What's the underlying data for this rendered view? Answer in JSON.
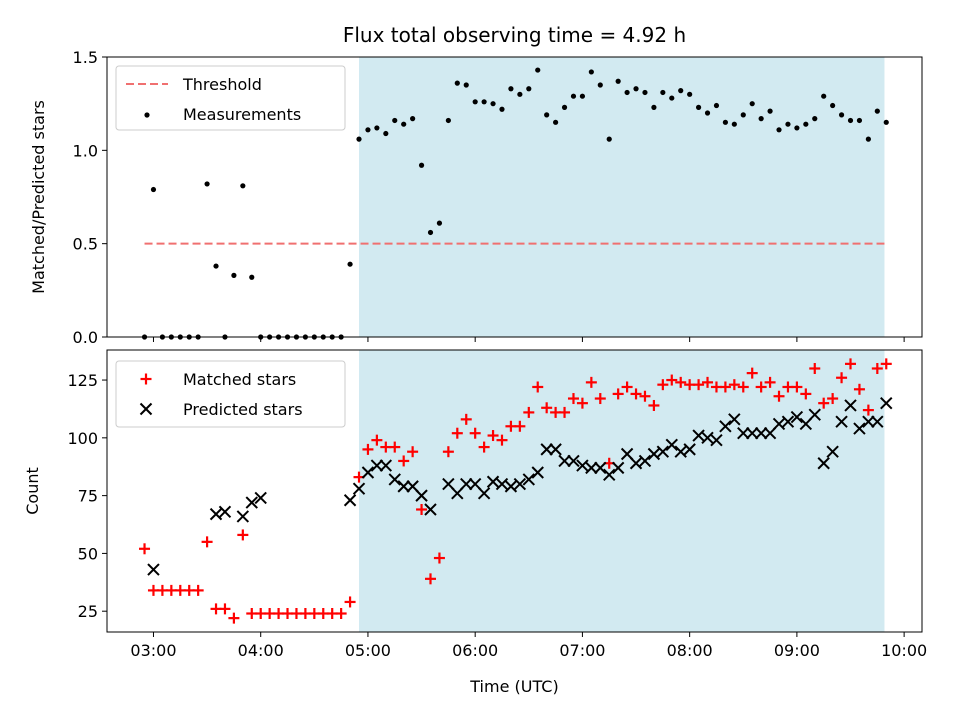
{
  "chart_data": [
    {
      "type": "scatter",
      "title": "Flux total observing time = 4.92 h",
      "xlabel": "",
      "ylabel": "Matched/Predicted stars",
      "xlim": [
        "02:34",
        "10:10"
      ],
      "ylim": [
        0,
        1.5
      ],
      "y_ticks": [
        "0.0",
        "0.5",
        "1.0",
        "1.5"
      ],
      "grid": false,
      "legend": "upper-left",
      "highlight_span": {
        "start": "04:55",
        "end": "09:49",
        "color": "#add8e6"
      },
      "threshold": {
        "name": "Threshold",
        "value": 0.5,
        "x_start": "02:55",
        "x_end": "09:49",
        "color": "#f07070"
      },
      "series": [
        {
          "name": "Measurements",
          "color": "#000000",
          "marker": "dot",
          "x": [
            "02:55",
            "03:00",
            "03:05",
            "03:10",
            "03:15",
            "03:20",
            "03:25",
            "03:30",
            "03:35",
            "03:40",
            "03:45",
            "03:50",
            "03:55",
            "04:00",
            "04:05",
            "04:10",
            "04:15",
            "04:20",
            "04:25",
            "04:30",
            "04:35",
            "04:40",
            "04:45",
            "04:50",
            "04:55",
            "05:00",
            "05:05",
            "05:10",
            "05:15",
            "05:20",
            "05:25",
            "05:30",
            "05:35",
            "05:40",
            "05:45",
            "05:50",
            "05:55",
            "06:00",
            "06:05",
            "06:10",
            "06:15",
            "06:20",
            "06:25",
            "06:30",
            "06:35",
            "06:40",
            "06:45",
            "06:50",
            "06:55",
            "07:00",
            "07:05",
            "07:10",
            "07:15",
            "07:20",
            "07:25",
            "07:30",
            "07:35",
            "07:40",
            "07:45",
            "07:50",
            "07:55",
            "08:00",
            "08:05",
            "08:10",
            "08:15",
            "08:20",
            "08:25",
            "08:30",
            "08:35",
            "08:40",
            "08:45",
            "08:50",
            "08:55",
            "09:00",
            "09:05",
            "09:10",
            "09:15",
            "09:20",
            "09:25",
            "09:30",
            "09:35",
            "09:40",
            "09:45",
            "09:50"
          ],
          "y": [
            0.0,
            0.79,
            0.0,
            0.0,
            0.0,
            0.0,
            0.0,
            0.82,
            0.38,
            0.0,
            0.33,
            0.81,
            0.32,
            0.0,
            0.0,
            0.0,
            0.0,
            0.0,
            0.0,
            0.0,
            0.0,
            0.0,
            0.0,
            0.39,
            1.06,
            1.11,
            1.12,
            1.09,
            1.16,
            1.14,
            1.17,
            0.92,
            0.56,
            0.61,
            1.16,
            1.36,
            1.35,
            1.26,
            1.26,
            1.25,
            1.22,
            1.33,
            1.3,
            1.33,
            1.43,
            1.19,
            1.15,
            1.23,
            1.29,
            1.29,
            1.42,
            1.35,
            1.06,
            1.37,
            1.31,
            1.33,
            1.31,
            1.23,
            1.31,
            1.28,
            1.32,
            1.3,
            1.23,
            1.2,
            1.24,
            1.15,
            1.14,
            1.19,
            1.25,
            1.17,
            1.21,
            1.11,
            1.14,
            1.12,
            1.14,
            1.17,
            1.29,
            1.24,
            1.19,
            1.16,
            1.16,
            1.06,
            1.21,
            1.15
          ]
        }
      ]
    },
    {
      "type": "scatter",
      "title": "",
      "xlabel": "Time (UTC)",
      "ylabel": "Count",
      "xlim": [
        "02:34",
        "10:10"
      ],
      "ylim": [
        16,
        138
      ],
      "x_ticks": [
        "03:00",
        "04:00",
        "05:00",
        "06:00",
        "07:00",
        "08:00",
        "09:00",
        "10:00"
      ],
      "y_ticks": [
        "25",
        "50",
        "75",
        "100",
        "125"
      ],
      "grid": false,
      "legend": "upper-left",
      "highlight_span": {
        "start": "04:55",
        "end": "09:49",
        "color": "#add8e6"
      },
      "series": [
        {
          "name": "Matched stars",
          "color": "#ff0000",
          "marker": "plus",
          "x": [
            "02:55",
            "03:00",
            "03:05",
            "03:10",
            "03:15",
            "03:20",
            "03:25",
            "03:30",
            "03:35",
            "03:40",
            "03:45",
            "03:50",
            "03:55",
            "04:00",
            "04:05",
            "04:10",
            "04:15",
            "04:20",
            "04:25",
            "04:30",
            "04:35",
            "04:40",
            "04:45",
            "04:50",
            "04:55",
            "05:00",
            "05:05",
            "05:10",
            "05:15",
            "05:20",
            "05:25",
            "05:30",
            "05:35",
            "05:40",
            "05:45",
            "05:50",
            "05:55",
            "06:00",
            "06:05",
            "06:10",
            "06:15",
            "06:20",
            "06:25",
            "06:30",
            "06:35",
            "06:40",
            "06:45",
            "06:50",
            "06:55",
            "07:00",
            "07:05",
            "07:10",
            "07:15",
            "07:20",
            "07:25",
            "07:30",
            "07:35",
            "07:40",
            "07:45",
            "07:50",
            "07:55",
            "08:00",
            "08:05",
            "08:10",
            "08:15",
            "08:20",
            "08:25",
            "08:30",
            "08:35",
            "08:40",
            "08:45",
            "08:50",
            "08:55",
            "09:00",
            "09:05",
            "09:10",
            "09:15",
            "09:20",
            "09:25",
            "09:30",
            "09:35",
            "09:40",
            "09:45",
            "09:50"
          ],
          "y": [
            52,
            34,
            34,
            34,
            34,
            34,
            34,
            55,
            26,
            26,
            22,
            58,
            24,
            24,
            24,
            24,
            24,
            24,
            24,
            24,
            24,
            24,
            24,
            29,
            83,
            95,
            99,
            96,
            96,
            90,
            94,
            69,
            39,
            48,
            94,
            102,
            108,
            102,
            96,
            101,
            99,
            105,
            105,
            111,
            122,
            113,
            111,
            111,
            117,
            115,
            124,
            117,
            89,
            119,
            122,
            119,
            118,
            114,
            123,
            125,
            124,
            123,
            123,
            124,
            122,
            122,
            123,
            122,
            128,
            122,
            124,
            118,
            122,
            122,
            119,
            130,
            115,
            117,
            126,
            132,
            121,
            112,
            130,
            132
          ]
        },
        {
          "name": "Predicted stars",
          "color": "#000000",
          "marker": "x",
          "x": [
            "03:00",
            "03:35",
            "03:40",
            "03:50",
            "03:55",
            "04:00",
            "04:50",
            "04:55",
            "05:00",
            "05:05",
            "05:10",
            "05:15",
            "05:20",
            "05:25",
            "05:30",
            "05:35",
            "05:45",
            "05:50",
            "05:55",
            "06:00",
            "06:05",
            "06:10",
            "06:15",
            "06:20",
            "06:25",
            "06:30",
            "06:35",
            "06:40",
            "06:45",
            "06:50",
            "06:55",
            "07:00",
            "07:05",
            "07:10",
            "07:15",
            "07:20",
            "07:25",
            "07:30",
            "07:35",
            "07:40",
            "07:45",
            "07:50",
            "07:55",
            "08:00",
            "08:05",
            "08:10",
            "08:15",
            "08:20",
            "08:25",
            "08:30",
            "08:35",
            "08:40",
            "08:45",
            "08:50",
            "08:55",
            "09:00",
            "09:05",
            "09:10",
            "09:15",
            "09:20",
            "09:25",
            "09:30",
            "09:35",
            "09:40",
            "09:45",
            "09:50"
          ],
          "y": [
            43,
            67,
            68,
            66,
            72,
            74,
            73,
            78,
            85,
            88,
            88,
            82,
            79,
            79,
            75,
            69,
            80,
            76,
            80,
            80,
            76,
            81,
            80,
            79,
            80,
            82,
            85,
            95,
            95,
            90,
            90,
            88,
            87,
            87,
            84,
            87,
            93,
            89,
            90,
            93,
            94,
            97,
            94,
            95,
            101,
            100,
            99,
            105,
            108,
            102,
            102,
            102,
            102,
            106,
            107,
            109,
            106,
            110,
            89,
            94,
            107,
            114,
            104,
            107,
            107,
            115
          ]
        }
      ]
    }
  ]
}
